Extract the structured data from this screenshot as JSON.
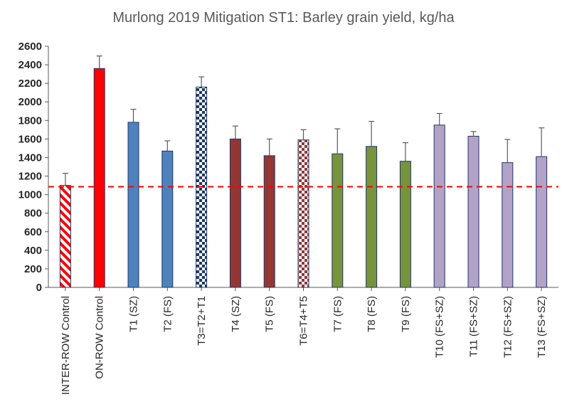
{
  "chart_data": {
    "type": "bar",
    "title": "Murlong 2019 Mitigation ST1: Barley grain yield, kg/ha",
    "xlabel": "",
    "ylabel": "",
    "ylim": [
      0,
      2600
    ],
    "yticks": [
      0,
      200,
      400,
      600,
      800,
      1000,
      1200,
      1400,
      1600,
      1800,
      2000,
      2200,
      2400,
      2600
    ],
    "categories": [
      "INTER-ROW Control",
      "ON-ROW Control",
      "T1 (SZ)",
      "T2 (FS)",
      "T3=T2+T1",
      "T4 (SZ)",
      "T5 (FS)",
      "T6=T4+T5",
      "T7 (FS)",
      "T8 (FS)",
      "T9 (FS)",
      "T10 (FS+SZ)",
      "T11 (FS+SZ)",
      "T12 (FS+SZ)",
      "T13 (FS+SZ)"
    ],
    "values": [
      1100,
      2360,
      1780,
      1470,
      2160,
      1600,
      1420,
      1590,
      1440,
      1520,
      1360,
      1750,
      1630,
      1345,
      1410
    ],
    "error": [
      130,
      135,
      140,
      110,
      110,
      140,
      180,
      110,
      270,
      270,
      200,
      125,
      50,
      250,
      310
    ],
    "colors": [
      "#ff0000",
      "#ff0000",
      "#4f81bd",
      "#4f81bd",
      "#1f3864",
      "#943634",
      "#943634",
      "#943634",
      "#77933c",
      "#77933c",
      "#77933c",
      "#b3a2c7",
      "#b3a2c7",
      "#b3a2c7",
      "#b3a2c7"
    ],
    "patterns": [
      "stripe",
      "solid",
      "solid",
      "solid",
      "checker",
      "solid",
      "solid",
      "checker",
      "solid",
      "solid",
      "solid",
      "solid",
      "solid",
      "solid",
      "solid"
    ],
    "reference_line": {
      "value": 1085,
      "color": "#ff0000",
      "style": "dashed"
    },
    "grid": false,
    "legend": "none"
  }
}
